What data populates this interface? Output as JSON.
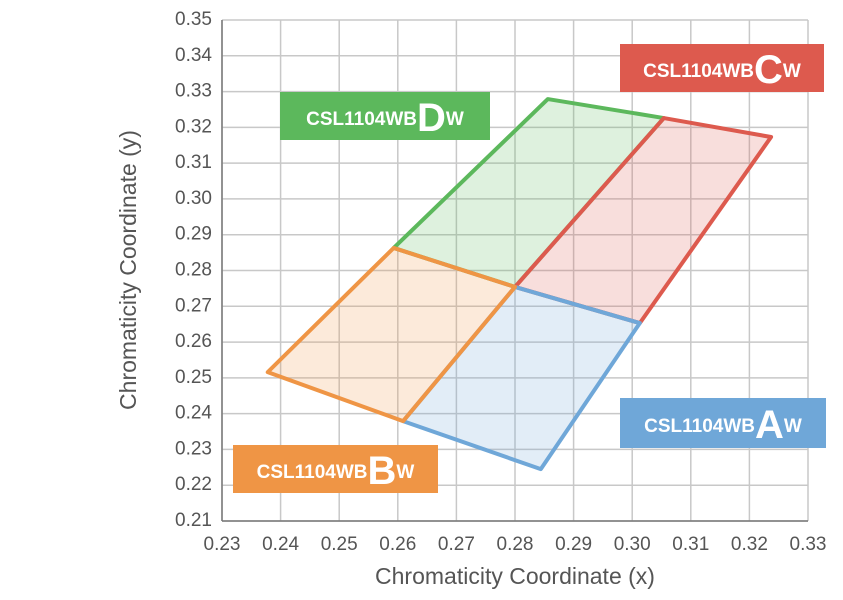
{
  "chart_data": {
    "type": "polygon",
    "x_label": "Chromaticity Coordinate (x)",
    "y_label": "Chromaticity Coordinate (y)",
    "xlim": [
      0.23,
      0.33
    ],
    "xticks": [
      0.23,
      0.24,
      0.25,
      0.26,
      0.27,
      0.28,
      0.29,
      {
        "value": 0.3,
        "label": "0.30"
      },
      0.31,
      0.32,
      0.33
    ],
    "ylim": [
      0.21,
      0.35
    ],
    "yticks": [
      0.21,
      0.22,
      0.23,
      0.24,
      0.25,
      0.26,
      0.27,
      0.28,
      0.29,
      {
        "value": 0.3,
        "label": "0.30"
      },
      0.31,
      0.32,
      0.33,
      0.34,
      0.35
    ],
    "grid": true,
    "series": [
      {
        "name": "CSL1104WBDW",
        "color": "#5cb85c",
        "x": [
          0.2593,
          0.2856,
          0.3054,
          0.28
        ],
        "y": [
          0.2863,
          0.3279,
          0.3226,
          0.2754
        ]
      },
      {
        "name": "CSL1104WBCW",
        "color": "#dd5a4e",
        "x": [
          0.3054,
          0.3237,
          0.3013,
          0.28
        ],
        "y": [
          0.3226,
          0.3173,
          0.2653,
          0.2754
        ]
      },
      {
        "name": "CSL1104WBAW",
        "color": "#6fa7d8",
        "x": [
          0.28,
          0.3013,
          0.2844,
          0.2609
        ],
        "y": [
          0.2754,
          0.2653,
          0.2245,
          0.2379
        ]
      },
      {
        "name": "CSL1104WBBW",
        "color": "#ef9545",
        "x": [
          0.2378,
          0.2593,
          0.28,
          0.2609
        ],
        "y": [
          0.2516,
          0.2863,
          0.2754,
          0.2379
        ]
      }
    ]
  }
}
